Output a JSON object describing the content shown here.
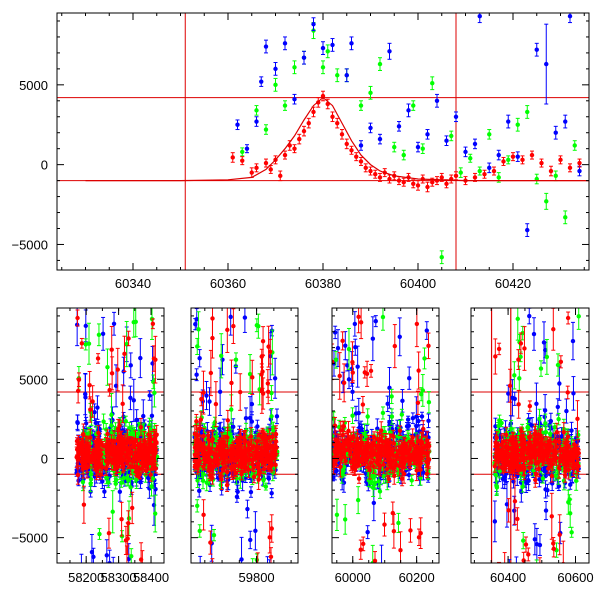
{
  "colors": {
    "red": "#ff0000",
    "green": "#00ff00",
    "blue": "#0000ff",
    "axis": "#000000",
    "refline": "#dd0000"
  },
  "chart_data": [
    {
      "type": "scatter",
      "panel": "top",
      "xlim": [
        60324,
        60436
      ],
      "ylim": [
        -6600,
        9500
      ],
      "xticks": [
        60340,
        60360,
        60380,
        60400,
        60420
      ],
      "xtick_labels": [
        "60340",
        "60360",
        "60380",
        "60400",
        "60420"
      ],
      "yticks": [
        -5000,
        0,
        5000
      ],
      "ytick_labels": [
        "−5000",
        "0",
        "5000"
      ],
      "hlines": [
        4200,
        -1000
      ],
      "vlines": [
        60351,
        60408
      ],
      "series": [
        {
          "color": "red",
          "points": [
            [
              60361,
              450,
              300
            ],
            [
              60363,
              250,
              250
            ],
            [
              60365,
              -500,
              300
            ],
            [
              60366,
              -200,
              250
            ],
            [
              60368,
              100,
              250
            ],
            [
              60369,
              -300,
              250
            ],
            [
              60370,
              300,
              250
            ],
            [
              60371,
              -700,
              300
            ],
            [
              60372,
              600,
              250
            ],
            [
              60373,
              1200,
              300
            ],
            [
              60374,
              1000,
              250
            ],
            [
              60375,
              1600,
              300
            ],
            [
              60376,
              2100,
              300
            ],
            [
              60377,
              2600,
              300
            ],
            [
              60378,
              3300,
              300
            ],
            [
              60379,
              3900,
              300
            ],
            [
              60380,
              4300,
              300
            ],
            [
              60381,
              3800,
              300
            ],
            [
              60382,
              3000,
              300
            ],
            [
              60383,
              2600,
              300
            ],
            [
              60384,
              1900,
              300
            ],
            [
              60385,
              1300,
              300
            ],
            [
              60386,
              900,
              250
            ],
            [
              60387,
              500,
              250
            ],
            [
              60388,
              200,
              250
            ],
            [
              60389,
              -200,
              250
            ],
            [
              60390,
              -400,
              250
            ],
            [
              60391,
              -600,
              250
            ],
            [
              60392,
              -800,
              250
            ],
            [
              60393,
              -500,
              250
            ],
            [
              60394,
              -900,
              250
            ],
            [
              60395,
              -700,
              250
            ],
            [
              60396,
              -1000,
              250
            ],
            [
              60397,
              -1100,
              250
            ],
            [
              60398,
              -800,
              250
            ],
            [
              60399,
              -1200,
              250
            ],
            [
              60400,
              -1300,
              300
            ],
            [
              60401,
              -900,
              250
            ],
            [
              60402,
              -1400,
              300
            ],
            [
              60403,
              -1100,
              250
            ],
            [
              60404,
              -1000,
              250
            ],
            [
              60405,
              -800,
              250
            ],
            [
              60406,
              -1200,
              250
            ],
            [
              60407,
              -900,
              250
            ],
            [
              60408,
              -700,
              250
            ],
            [
              60410,
              -1000,
              250
            ],
            [
              60412,
              -800,
              250
            ],
            [
              60414,
              -600,
              250
            ],
            [
              60416,
              -400,
              250
            ],
            [
              60418,
              200,
              250
            ],
            [
              60420,
              500,
              250
            ],
            [
              60422,
              300,
              250
            ],
            [
              60424,
              600,
              250
            ],
            [
              60426,
              100,
              250
            ],
            [
              60428,
              -400,
              300
            ],
            [
              60430,
              300,
              250
            ],
            [
              60432,
              -200,
              250
            ],
            [
              60434,
              100,
              250
            ]
          ]
        },
        {
          "color": "green",
          "points": [
            [
              60363,
              800,
              250
            ],
            [
              60366,
              3400,
              300
            ],
            [
              60368,
              2200,
              300
            ],
            [
              60370,
              5000,
              400
            ],
            [
              60372,
              3700,
              300
            ],
            [
              60374,
              6100,
              400
            ],
            [
              60376,
              6700,
              400
            ],
            [
              60378,
              8400,
              500
            ],
            [
              60380,
              6100,
              400
            ],
            [
              60381,
              7100,
              400
            ],
            [
              60383,
              5600,
              400
            ],
            [
              60385,
              5600,
              400
            ],
            [
              60388,
              3700,
              300
            ],
            [
              60390,
              4500,
              400
            ],
            [
              60392,
              6300,
              400
            ],
            [
              60395,
              1100,
              300
            ],
            [
              60397,
              600,
              300
            ],
            [
              60399,
              3700,
              300
            ],
            [
              60401,
              1000,
              300
            ],
            [
              60403,
              5100,
              400
            ],
            [
              60405,
              -5800,
              400
            ],
            [
              60407,
              1800,
              300
            ],
            [
              60409,
              -500,
              300
            ],
            [
              60411,
              400,
              250
            ],
            [
              60413,
              -400,
              250
            ],
            [
              60415,
              1900,
              300
            ],
            [
              60417,
              -800,
              300
            ],
            [
              60419,
              300,
              250
            ],
            [
              60421,
              2500,
              400
            ],
            [
              60423,
              3300,
              400
            ],
            [
              60425,
              -900,
              300
            ],
            [
              60427,
              -2300,
              500
            ],
            [
              60429,
              -700,
              300
            ],
            [
              60431,
              -3300,
              400
            ],
            [
              60433,
              1200,
              300
            ]
          ]
        },
        {
          "color": "blue",
          "points": [
            [
              60362,
              2500,
              300
            ],
            [
              60364,
              1000,
              250
            ],
            [
              60366,
              2700,
              300
            ],
            [
              60367,
              5200,
              300
            ],
            [
              60368,
              7400,
              400
            ],
            [
              60370,
              6000,
              400
            ],
            [
              60372,
              7600,
              400
            ],
            [
              60374,
              4100,
              300
            ],
            [
              60376,
              6700,
              400
            ],
            [
              60378,
              8800,
              400
            ],
            [
              60380,
              7300,
              400
            ],
            [
              60382,
              7500,
              400
            ],
            [
              60385,
              5600,
              400
            ],
            [
              60386,
              7600,
              400
            ],
            [
              60388,
              1200,
              300
            ],
            [
              60390,
              2300,
              300
            ],
            [
              60392,
              1600,
              300
            ],
            [
              60394,
              7100,
              500
            ],
            [
              60396,
              2400,
              300
            ],
            [
              60398,
              3400,
              400
            ],
            [
              60400,
              1100,
              300
            ],
            [
              60402,
              1900,
              300
            ],
            [
              60404,
              4000,
              400
            ],
            [
              60406,
              1500,
              300
            ],
            [
              60408,
              3000,
              300
            ],
            [
              60410,
              800,
              300
            ],
            [
              60412,
              1300,
              300
            ],
            [
              60413,
              9300,
              400
            ],
            [
              60415,
              -200,
              300
            ],
            [
              60417,
              600,
              300
            ],
            [
              60419,
              2700,
              400
            ],
            [
              60421,
              500,
              300
            ],
            [
              60423,
              -4100,
              400
            ],
            [
              60425,
              7200,
              400
            ],
            [
              60427,
              6300,
              2500
            ],
            [
              60429,
              2000,
              400
            ],
            [
              60431,
              2700,
              400
            ],
            [
              60432,
              9300,
              400
            ],
            [
              60434,
              -400,
              300
            ]
          ]
        }
      ],
      "model_curve": [
        [
          60330,
          -1000
        ],
        [
          60340,
          -1000
        ],
        [
          60350,
          -1000
        ],
        [
          60360,
          -950
        ],
        [
          60365,
          -800
        ],
        [
          60368,
          -300
        ],
        [
          60370,
          300
        ],
        [
          60372,
          1000
        ],
        [
          60374,
          1800
        ],
        [
          60376,
          2800
        ],
        [
          60378,
          3700
        ],
        [
          60380,
          4200
        ],
        [
          60382,
          3700
        ],
        [
          60384,
          2600
        ],
        [
          60386,
          1500
        ],
        [
          60388,
          600
        ],
        [
          60390,
          0
        ],
        [
          60392,
          -400
        ],
        [
          60395,
          -700
        ],
        [
          60400,
          -900
        ],
        [
          60410,
          -1000
        ],
        [
          60436,
          -1000
        ]
      ]
    },
    {
      "type": "scatter",
      "panel": "bottom",
      "ylim": [
        -6600,
        9500
      ],
      "yticks": [
        -5000,
        0,
        5000
      ],
      "ytick_labels": [
        "−5000",
        "0",
        "5000"
      ],
      "hlines": [
        4200,
        -1000
      ],
      "segments": [
        {
          "xlim": [
            58110,
            58440
          ],
          "xticks": [
            58200,
            58300,
            58400
          ],
          "xtick_labels": [
            "58200",
            "58300",
            "58400"
          ],
          "data_range": [
            58170,
            58420
          ],
          "spread": 1800,
          "outliers": 30,
          "vlines": []
        },
        {
          "xlim": [
            59610,
            59920
          ],
          "xticks": [
            59800
          ],
          "xtick_labels": [
            "59800"
          ],
          "data_range": [
            59620,
            59860
          ],
          "spread": 1800,
          "outliers": 30,
          "vlines": []
        },
        {
          "xlim": [
            59935,
            60270
          ],
          "xticks": [
            60000,
            60200
          ],
          "xtick_labels": [
            "60000",
            "60200"
          ],
          "data_range": [
            59935,
            60240
          ],
          "spread": 1700,
          "outliers": 30,
          "vlines": []
        },
        {
          "xlim": [
            60290,
            60640
          ],
          "xticks": [
            60400,
            60600
          ],
          "xtick_labels": [
            "60400",
            "60600"
          ],
          "data_range": [
            60360,
            60610
          ],
          "spread": 1700,
          "outliers": 30,
          "vlines": [
            60351,
            60408
          ]
        }
      ]
    }
  ]
}
